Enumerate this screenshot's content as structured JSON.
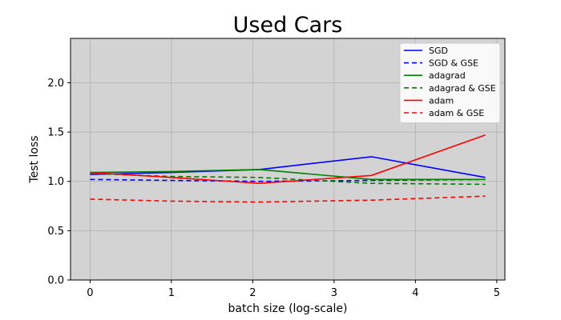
{
  "chart_data": {
    "type": "line",
    "title": "Used Cars",
    "xlabel": "batch size (log-scale)",
    "ylabel": "Test loss",
    "xlim": [
      -0.24,
      5.1
    ],
    "ylim": [
      0.0,
      2.45
    ],
    "xticks": [
      0,
      1,
      2,
      3,
      4,
      5
    ],
    "yticks": [
      0.0,
      0.5,
      1.0,
      1.5,
      2.0
    ],
    "grid": true,
    "plot_background": "#d3d3d3",
    "legend_position": "top-right",
    "series": [
      {
        "name": "SGD",
        "color": "#0000ff",
        "style": "solid",
        "x": [
          0,
          1,
          2.08,
          3.46,
          4.86
        ],
        "y": [
          1.07,
          1.09,
          1.12,
          1.25,
          1.04
        ]
      },
      {
        "name": "SGD & GSE",
        "color": "#0000ff",
        "style": "dashed",
        "x": [
          0,
          1,
          2.08,
          3.46,
          4.86
        ],
        "y": [
          1.02,
          1.01,
          1.0,
          1.01,
          1.02
        ]
      },
      {
        "name": "adagrad",
        "color": "#008000",
        "style": "solid",
        "x": [
          0,
          1,
          2.08,
          3.46,
          4.86
        ],
        "y": [
          1.09,
          1.1,
          1.12,
          1.02,
          1.02
        ]
      },
      {
        "name": "adagrad & GSE",
        "color": "#008000",
        "style": "dashed",
        "x": [
          0,
          1,
          2.08,
          3.46,
          4.86
        ],
        "y": [
          1.08,
          1.05,
          1.04,
          0.98,
          0.97
        ]
      },
      {
        "name": "adam",
        "color": "#ff0000",
        "style": "solid",
        "x": [
          0,
          1,
          2.08,
          3.46,
          4.86
        ],
        "y": [
          1.09,
          1.04,
          0.98,
          1.06,
          1.47
        ]
      },
      {
        "name": "adam & GSE",
        "color": "#ff0000",
        "style": "dashed",
        "x": [
          0,
          1,
          2.08,
          3.46,
          4.86
        ],
        "y": [
          0.82,
          0.8,
          0.79,
          0.81,
          0.85
        ]
      }
    ]
  }
}
